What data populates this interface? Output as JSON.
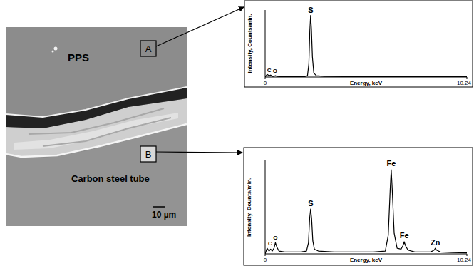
{
  "sem_image": {
    "material_top": "PPS",
    "material_bottom": "Carbon steel tube",
    "scale_bar": "10 µm",
    "regions": [
      "A",
      "B"
    ]
  },
  "chart_data": [
    {
      "type": "line",
      "color": "#000000",
      "xlabel": "Energy, keV",
      "ylabel": "Intensity, Counts/min.",
      "xlim": [
        0,
        10.24
      ],
      "ylim": [
        0,
        100
      ],
      "xticks": [
        0,
        10.24
      ],
      "tick_labels": "x",
      "x": [
        0,
        0.1,
        0.2,
        0.28,
        0.36,
        0.45,
        0.52,
        0.6,
        0.8,
        1.5,
        2.0,
        2.15,
        2.22,
        2.27,
        2.31,
        2.35,
        2.4,
        2.47,
        2.6,
        3.0,
        4.0,
        6.0,
        8.0,
        10.24
      ],
      "values": [
        0,
        4,
        2,
        3,
        1,
        1,
        2,
        1,
        0.5,
        0.5,
        0.5,
        2,
        20,
        70,
        92,
        72,
        30,
        6,
        2,
        1,
        0.7,
        0.5,
        0.5,
        0.3
      ],
      "annotations": [
        {
          "text": "C",
          "x": 0.2,
          "y": 5
        },
        {
          "text": "O",
          "x": 0.5,
          "y": 4
        },
        {
          "text": "S",
          "x": 2.31,
          "y": 94
        }
      ]
    },
    {
      "type": "line",
      "color": "#000000",
      "xlabel": "Energy, keV",
      "ylabel": "Intensity, Counts/min.",
      "xlim": [
        0,
        10.24
      ],
      "ylim": [
        0,
        100
      ],
      "xticks": [
        0,
        10.24
      ],
      "tick_labels": "x",
      "x": [
        0,
        0.1,
        0.2,
        0.28,
        0.36,
        0.45,
        0.52,
        0.6,
        0.7,
        1.0,
        1.8,
        2.1,
        2.2,
        2.26,
        2.31,
        2.36,
        2.42,
        2.5,
        2.7,
        3.5,
        5.5,
        6.1,
        6.25,
        6.35,
        6.4,
        6.45,
        6.55,
        6.7,
        6.9,
        7.0,
        7.06,
        7.12,
        7.25,
        7.6,
        8.4,
        8.58,
        8.64,
        8.7,
        8.9,
        9.5,
        10.24
      ],
      "values": [
        0,
        6,
        3,
        5,
        3,
        6,
        12,
        7,
        3,
        2,
        2,
        3,
        12,
        38,
        48,
        38,
        14,
        5,
        3,
        2,
        2,
        3,
        20,
        70,
        90,
        70,
        22,
        6,
        5,
        9,
        13,
        9,
        4,
        2,
        2,
        4,
        6,
        4,
        2,
        1.5,
        1
      ],
      "annotations": [
        {
          "text": "C",
          "x": 0.25,
          "y": 8
        },
        {
          "text": "O",
          "x": 0.52,
          "y": 14
        },
        {
          "text": "S",
          "x": 2.31,
          "y": 50
        },
        {
          "text": "Fe",
          "x": 6.4,
          "y": 92
        },
        {
          "text": "Fe",
          "x": 7.06,
          "y": 15
        },
        {
          "text": "Zn",
          "x": 8.64,
          "y": 8
        }
      ]
    }
  ]
}
